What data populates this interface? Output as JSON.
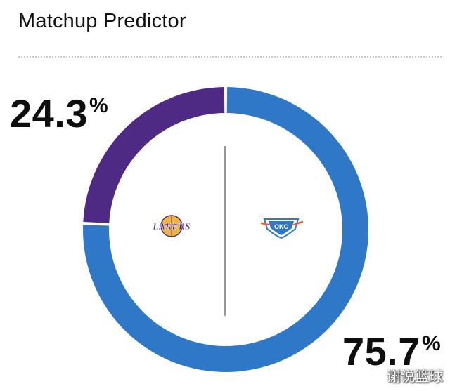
{
  "header": {
    "title": "Matchup Predictor"
  },
  "chart_data": {
    "type": "pie",
    "style": "donut",
    "series": [
      {
        "name": "Lakers",
        "value": 24.3,
        "color": "#4f2a85",
        "logo_icon": "lakers-logo-icon"
      },
      {
        "name": "Thunder",
        "value": 75.7,
        "color": "#2f78c8",
        "logo_icon": "thunder-logo-icon"
      }
    ],
    "labels": {
      "lakers_value": "24.3",
      "thunder_value": "75.7",
      "percent_symbol": "%"
    },
    "legend": "none"
  },
  "logos": {
    "lakers_text": "LAKERS",
    "thunder_text": "OKC"
  },
  "watermark": {
    "text": "谢说篮球"
  },
  "colors": {
    "lakers_purple": "#4f2a85",
    "thunder_blue": "#2f78c8",
    "lakers_gold": "#f2b53a",
    "thunder_orange": "#f05a28",
    "thunder_navy": "#0c2340"
  }
}
